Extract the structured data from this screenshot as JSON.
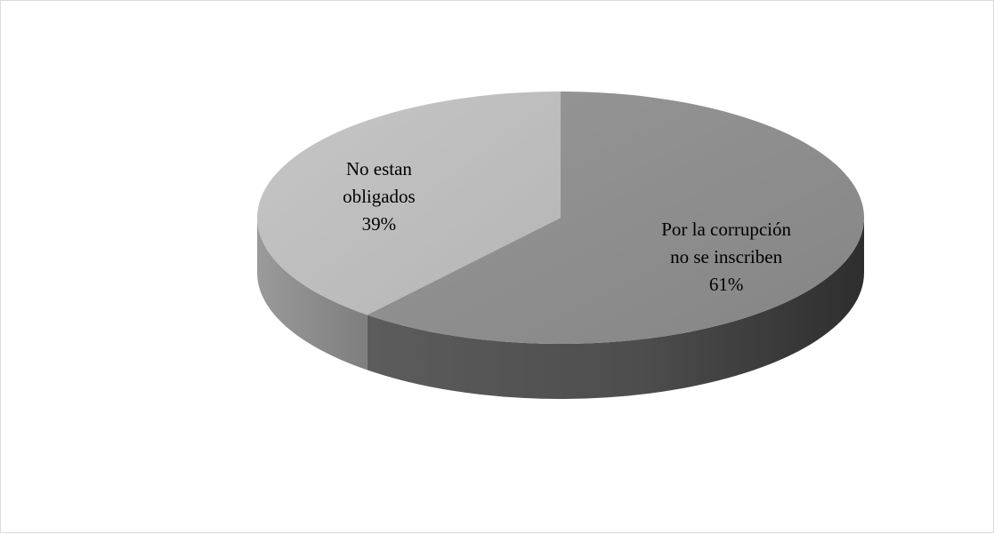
{
  "chart_data": {
    "type": "pie",
    "title": "",
    "slices": [
      {
        "label_lines": [
          "Por la corrupción",
          "no se inscriben"
        ],
        "value": 61,
        "value_label": "61%",
        "color": "#8c8c8c"
      },
      {
        "label_lines": [
          "No estan",
          "obligados"
        ],
        "value": 39,
        "value_label": "39%",
        "color": "#bdbdbd"
      }
    ],
    "three_d": true,
    "legend": "none",
    "data_labels": "inside"
  }
}
